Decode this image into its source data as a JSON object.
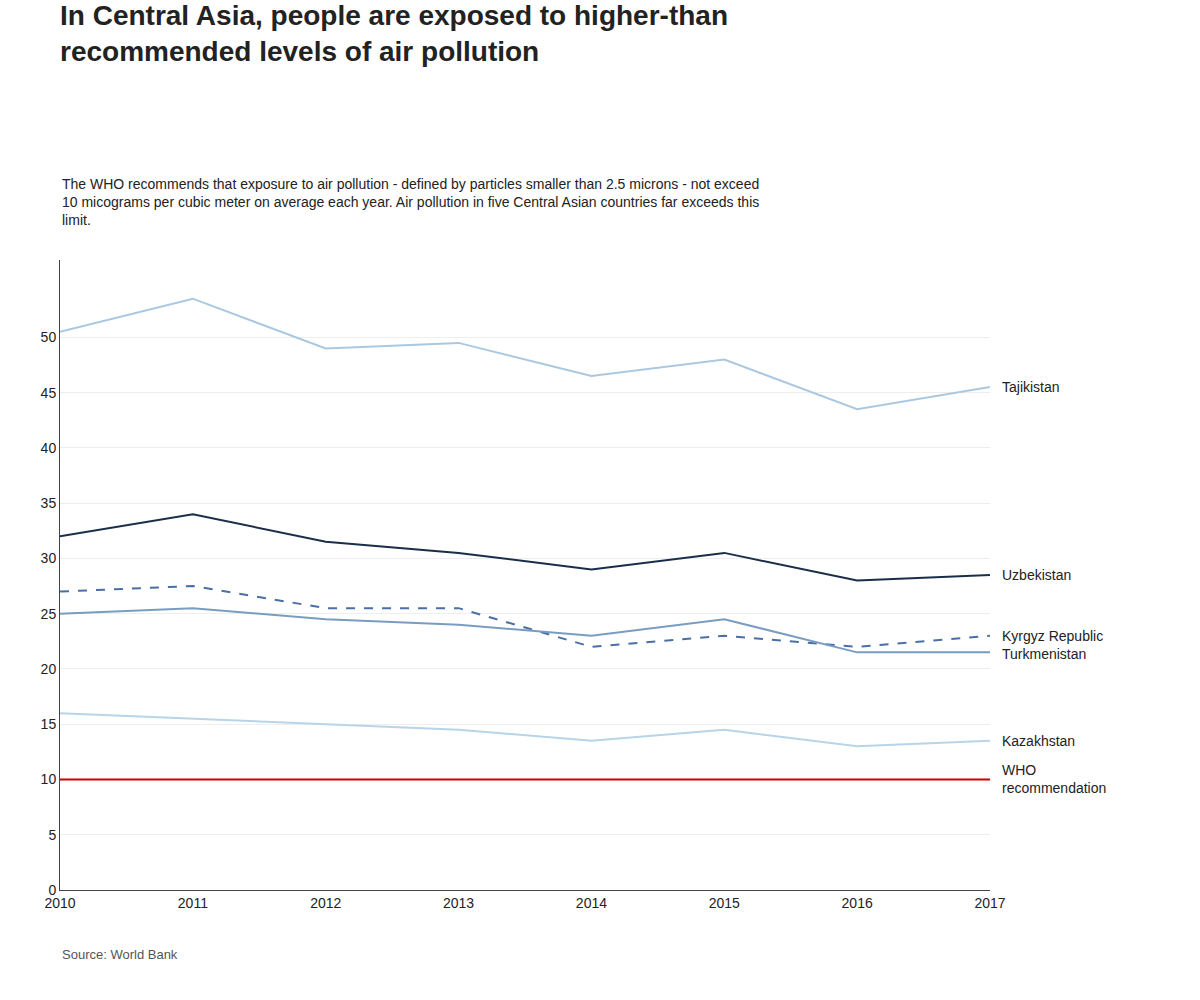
{
  "chart_data": {
    "type": "line",
    "title": "In Central Asia, people are exposed to higher-than\nrecommended levels of air pollution",
    "subtitle": "The WHO recommends that exposure to air pollution - defined by particles smaller than 2.5 microns - not exceed\n10 micograms per cubic meter on average each year. Air pollution in five Central Asian countries far exceeds this\nlimit.",
    "source": "Source: World Bank",
    "x": [
      2010,
      2011,
      2012,
      2013,
      2014,
      2015,
      2016,
      2017
    ],
    "series": [
      {
        "name": "Tajikistan",
        "color": "#aac8e0",
        "line_style": "solid",
        "values": [
          50.5,
          53.5,
          49.0,
          49.5,
          46.5,
          48.0,
          43.5,
          45.5
        ]
      },
      {
        "name": "Uzbekistan",
        "color": "#1a2e4a",
        "line_style": "solid",
        "values": [
          32.0,
          34.0,
          31.5,
          30.5,
          29.0,
          30.5,
          28.0,
          28.5
        ]
      },
      {
        "name": "Kyrgyz Republic",
        "color": "#4a6fa5",
        "line_style": "dash",
        "values": [
          27.0,
          27.5,
          25.5,
          25.5,
          22.0,
          23.0,
          22.0,
          23.0
        ]
      },
      {
        "name": "Turkmenistan",
        "color": "#7a9cc0",
        "line_style": "solid",
        "values": [
          25.0,
          25.5,
          24.5,
          24.0,
          23.0,
          24.5,
          21.5,
          21.5
        ]
      },
      {
        "name": "Kazakhstan",
        "color": "#b8d4e8",
        "line_style": "solid",
        "values": [
          16.0,
          15.5,
          15.0,
          14.5,
          13.5,
          14.5,
          13.0,
          13.5
        ]
      },
      {
        "name": "WHO\nrecommendation",
        "color": "#cc0000",
        "line_style": "solid",
        "values": [
          10.0,
          10.0,
          10.0,
          10.0,
          10.0,
          10.0,
          10.0,
          10.0
        ]
      }
    ],
    "xlim": [
      2010,
      2017
    ],
    "xticks": [
      2010,
      2011,
      2012,
      2013,
      2014,
      2015,
      2016,
      2017
    ],
    "ylim": [
      0,
      57
    ],
    "yticks": [
      0,
      5,
      10,
      15,
      20,
      25,
      30,
      35,
      40,
      45,
      50
    ],
    "grid": true
  }
}
